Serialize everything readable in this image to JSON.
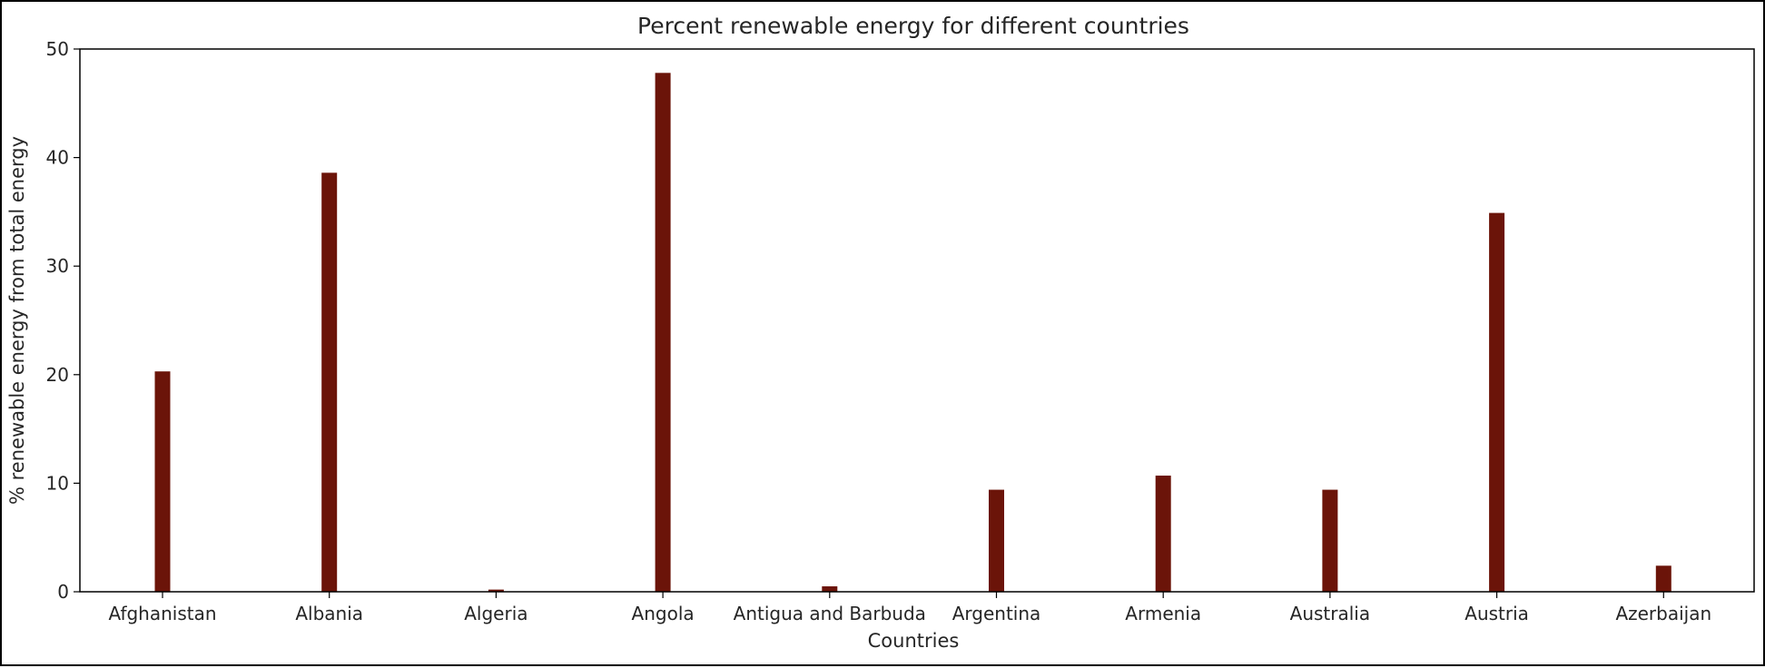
{
  "chart_data": {
    "type": "bar",
    "title": "Percent renewable energy for different countries",
    "xlabel": "Countries",
    "ylabel": "% renewable energy from total energy",
    "categories": [
      "Afghanistan",
      "Albania",
      "Algeria",
      "Angola",
      "Antigua and Barbuda",
      "Argentina",
      "Armenia",
      "Australia",
      "Austria",
      "Azerbaijan"
    ],
    "values": [
      20.3,
      38.6,
      0.2,
      47.8,
      0.5,
      9.4,
      10.7,
      9.4,
      34.9,
      2.4
    ],
    "ylim": [
      0,
      50
    ],
    "yticks": [
      0,
      10,
      20,
      30,
      40,
      50
    ],
    "grid": false,
    "legend": "none",
    "bar_color": "#6b1409",
    "axis_color": "#000000",
    "text_color": "#262626"
  }
}
